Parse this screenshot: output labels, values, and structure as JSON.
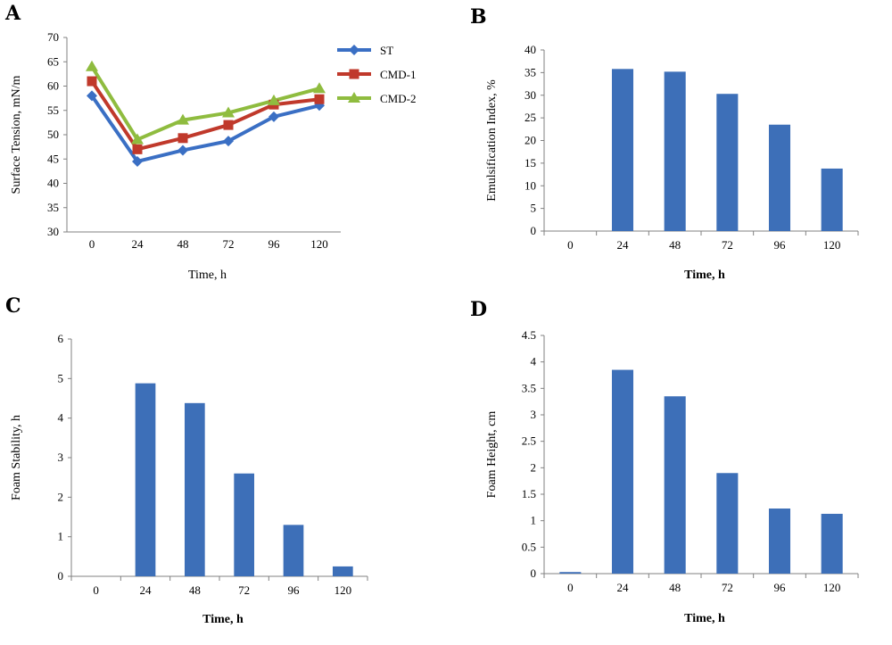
{
  "panels": {
    "A": {
      "letter": "A"
    },
    "B": {
      "letter": "B"
    },
    "C": {
      "letter": "C"
    },
    "D": {
      "letter": "D"
    }
  },
  "chart_data": [
    {
      "type": "line",
      "panel": "A",
      "x": [
        "0",
        "24",
        "48",
        "72",
        "96",
        "120"
      ],
      "xlabel": "Time, h",
      "ylabel": "Surface Tension, mN/m",
      "ylim": [
        30,
        70
      ],
      "yticks": [
        30,
        35,
        40,
        45,
        50,
        55,
        60,
        65,
        70
      ],
      "grid": false,
      "legend_position": "top-right",
      "series": [
        {
          "name": "ST",
          "color": "#3a6fc4",
          "marker": "diamond",
          "values": [
            58,
            44.5,
            46.8,
            48.7,
            53.7,
            56
          ]
        },
        {
          "name": "CMD-1",
          "color": "#c0392b",
          "marker": "square",
          "values": [
            61,
            47,
            49.3,
            52,
            56.2,
            57.3
          ]
        },
        {
          "name": "CMD-2",
          "color": "#8fbc3f",
          "marker": "triangle",
          "values": [
            64,
            49,
            53,
            54.5,
            57,
            59.5
          ]
        }
      ]
    },
    {
      "type": "bar",
      "panel": "B",
      "categories": [
        "0",
        "24",
        "48",
        "72",
        "96",
        "120"
      ],
      "values": [
        0,
        35.8,
        35.2,
        30.3,
        23.5,
        13.8
      ],
      "xlabel": "Time, h",
      "ylabel": "Emulsification Index, %",
      "ylim": [
        0,
        40
      ],
      "yticks": [
        0,
        5,
        10,
        15,
        20,
        25,
        30,
        35,
        40
      ],
      "color": "#3d6fb8",
      "grid": false
    },
    {
      "type": "bar",
      "panel": "C",
      "categories": [
        "0",
        "24",
        "48",
        "72",
        "96",
        "120"
      ],
      "values": [
        0,
        4.88,
        4.38,
        2.6,
        1.3,
        0.25
      ],
      "xlabel": "Time, h",
      "ylabel": "Foam Stability, h",
      "ylim": [
        0,
        6
      ],
      "yticks": [
        0,
        1,
        2,
        3,
        4,
        5,
        6
      ],
      "color": "#3d6fb8",
      "grid": false
    },
    {
      "type": "bar",
      "panel": "D",
      "categories": [
        "0",
        "24",
        "48",
        "72",
        "96",
        "120"
      ],
      "values": [
        0.03,
        3.85,
        3.35,
        1.9,
        1.23,
        1.13
      ],
      "xlabel": "Time, h",
      "ylabel": "Foam Height, cm",
      "ylim": [
        0,
        4.5
      ],
      "yticks": [
        0,
        0.5,
        1,
        1.5,
        2,
        2.5,
        3,
        3.5,
        4,
        4.5
      ],
      "color": "#3d6fb8",
      "grid": false
    }
  ]
}
